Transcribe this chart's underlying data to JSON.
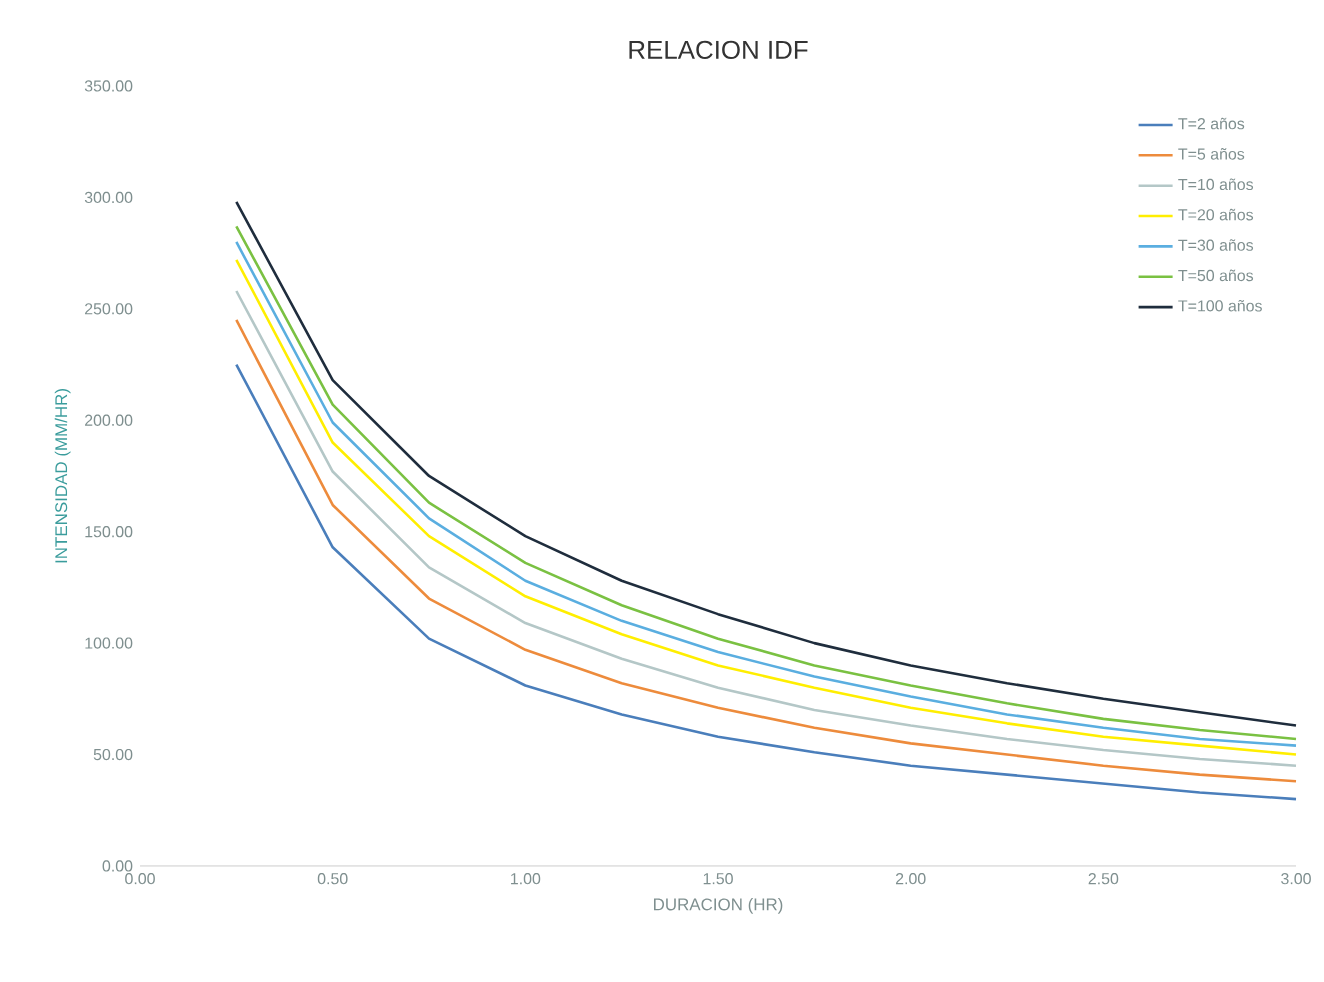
{
  "chart_data": {
    "type": "line",
    "title": "RELACION IDF",
    "xlabel": "DURACION (HR)",
    "ylabel": "INTENSIDAD (MM/HR)",
    "x": [
      0.25,
      0.5,
      0.75,
      1.0,
      1.25,
      1.5,
      1.75,
      2.0,
      2.25,
      2.5,
      2.75,
      3.0
    ],
    "series": [
      {
        "name": "T=2 años",
        "color": "#4a7ebb",
        "values": [
          225,
          143,
          102,
          81,
          68,
          58,
          51,
          45,
          41,
          37,
          33,
          30
        ]
      },
      {
        "name": "T=5 años",
        "color": "#ed8b3c",
        "values": [
          245,
          162,
          120,
          97,
          82,
          71,
          62,
          55,
          50,
          45,
          41,
          38
        ]
      },
      {
        "name": "T=10 años",
        "color": "#b4c7c7",
        "values": [
          258,
          177,
          134,
          109,
          93,
          80,
          70,
          63,
          57,
          52,
          48,
          45
        ]
      },
      {
        "name": "T=20 años",
        "color": "#ffee00",
        "values": [
          272,
          190,
          148,
          121,
          104,
          90,
          80,
          71,
          64,
          58,
          54,
          50
        ]
      },
      {
        "name": "T=30 años",
        "color": "#5aaee0",
        "values": [
          280,
          199,
          156,
          128,
          110,
          96,
          85,
          76,
          68,
          62,
          57,
          54
        ]
      },
      {
        "name": "T=50 años",
        "color": "#7ac142",
        "values": [
          287,
          207,
          163,
          136,
          117,
          102,
          90,
          81,
          73,
          66,
          61,
          57
        ]
      },
      {
        "name": "T=100 años",
        "color": "#1f2d3d",
        "values": [
          298,
          218,
          175,
          148,
          128,
          113,
          100,
          90,
          82,
          75,
          69,
          63
        ]
      }
    ],
    "xlim": [
      0,
      3
    ],
    "ylim": [
      0,
      350
    ],
    "xticks": [
      {
        "value": 0,
        "label": "0.00"
      },
      {
        "value": 0.5,
        "label": "0.50"
      },
      {
        "value": 1,
        "label": "1.00"
      },
      {
        "value": 1.5,
        "label": "1.50"
      },
      {
        "value": 2,
        "label": "2.00"
      },
      {
        "value": 2.5,
        "label": "2.50"
      },
      {
        "value": 3,
        "label": "3.00"
      }
    ],
    "yticks": [
      {
        "value": 0,
        "label": "0.00"
      },
      {
        "value": 50,
        "label": "50.00"
      },
      {
        "value": 100,
        "label": "100.00"
      },
      {
        "value": 150,
        "label": "150.00"
      },
      {
        "value": 200,
        "label": "200.00"
      },
      {
        "value": 250,
        "label": "250.00"
      },
      {
        "value": 300,
        "label": "300.00"
      },
      {
        "value": 350,
        "label": "350.00"
      }
    ],
    "legend": "top right",
    "grid": false,
    "marker": "none",
    "line_style": "solid"
  }
}
